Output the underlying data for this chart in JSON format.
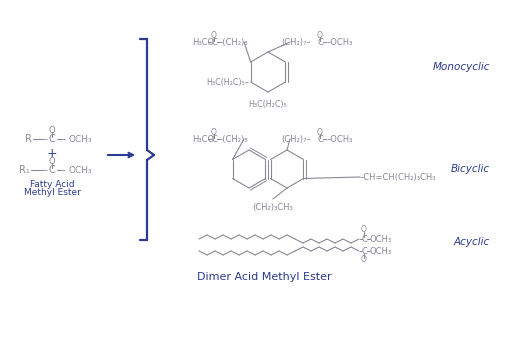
{
  "bg_color": "#ffffff",
  "chem_color": "#888899",
  "blue_color": "#2b3b8f",
  "title": "Dimer Acid Methyl Ester",
  "monocyclic_label": "Monocyclic",
  "bicyclic_label": "Bicyclic",
  "acyclic_label": "Acyclic",
  "fatty_acid_label1": "Fatty Acid",
  "fatty_acid_label2": "Methyl Ester"
}
